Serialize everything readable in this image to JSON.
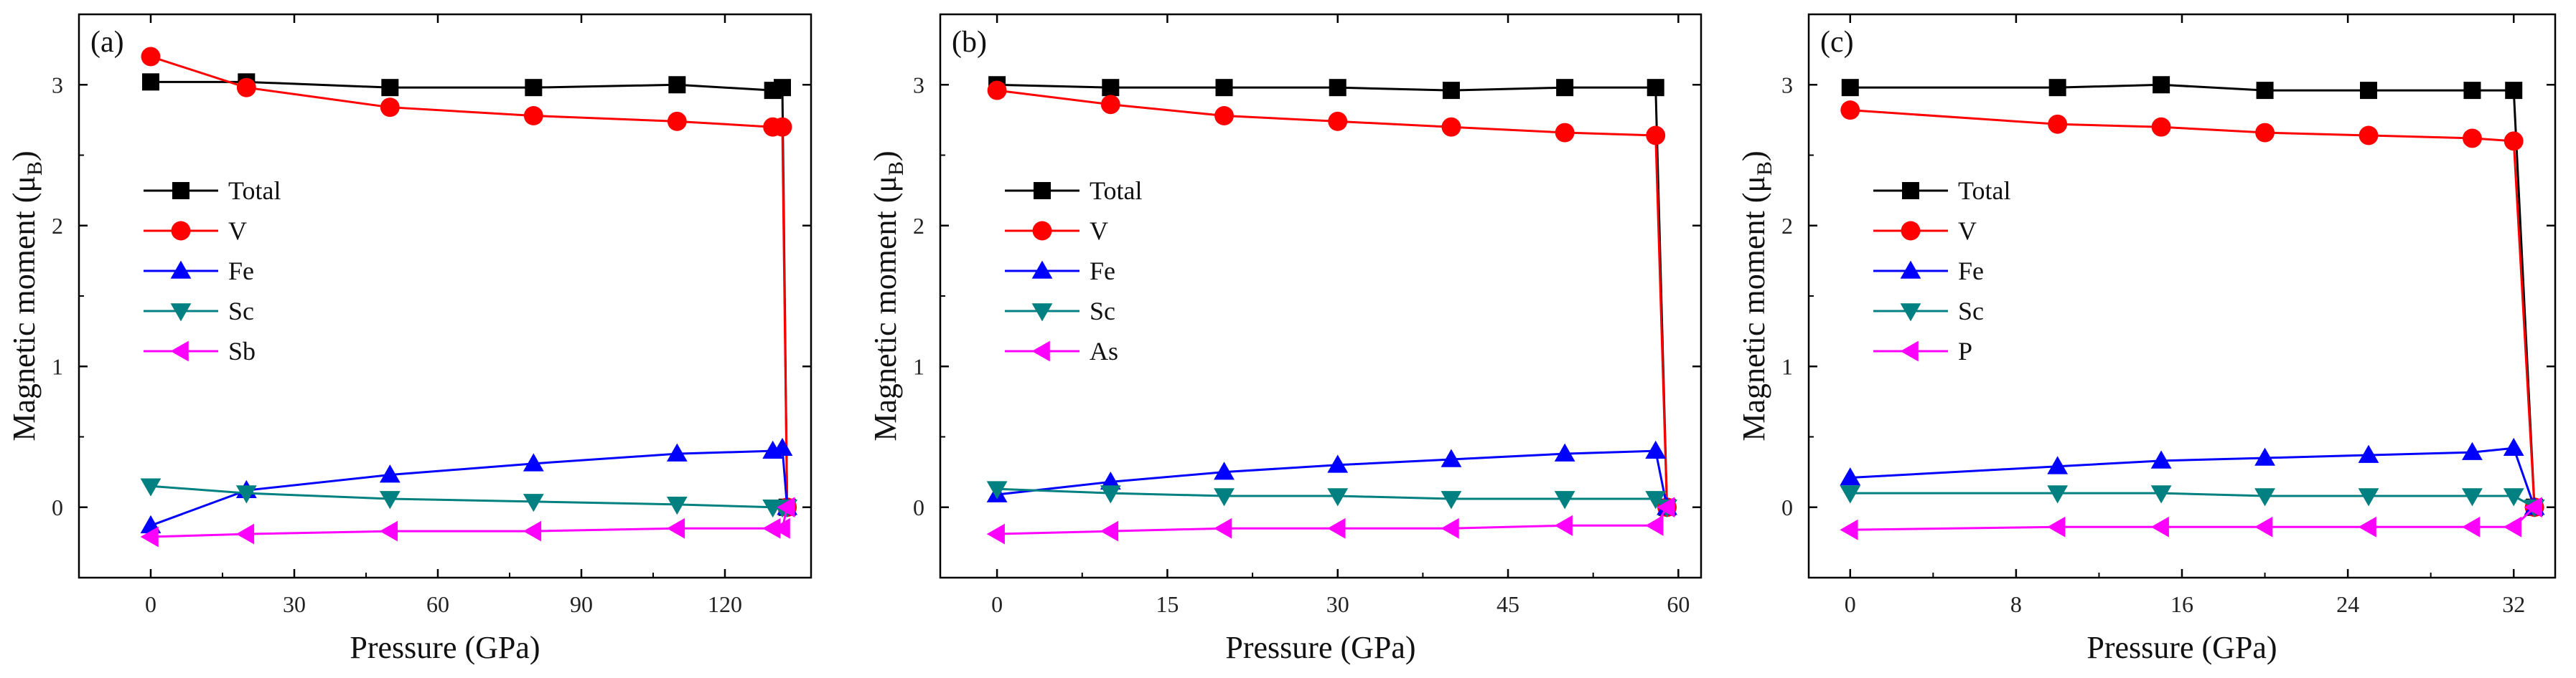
{
  "chart_data": [
    {
      "type": "line",
      "panel_label": "(a)",
      "xlabel": "Pressure (GPa)",
      "ylabel": "Magnetic moment (μ",
      "ylabel_sub": "B",
      "ylabel_close": ")",
      "xlim": [
        -15,
        138
      ],
      "ylim": [
        -0.5,
        3.5
      ],
      "xticks": [
        0,
        30,
        60,
        90,
        120
      ],
      "xtick_labels": [
        "0",
        "30",
        "60",
        "90",
        "120"
      ],
      "yticks": [
        0,
        1,
        2,
        3
      ],
      "ytick_labels": [
        "0",
        "1",
        "2",
        "3"
      ],
      "legend_position": "left",
      "series": [
        {
          "name": "Total",
          "color": "#000000",
          "marker": "square",
          "x": [
            0,
            20,
            50,
            80,
            110,
            130,
            132,
            133
          ],
          "y": [
            3.02,
            3.02,
            2.98,
            2.98,
            3.0,
            2.96,
            2.98,
            0.0
          ]
        },
        {
          "name": "V",
          "color": "#ff0000",
          "marker": "circle",
          "x": [
            0,
            20,
            50,
            80,
            110,
            130,
            132,
            133
          ],
          "y": [
            3.2,
            2.98,
            2.84,
            2.78,
            2.74,
            2.7,
            2.7,
            0.0
          ]
        },
        {
          "name": "Fe",
          "color": "#0000ff",
          "marker": "triangle-up",
          "x": [
            0,
            20,
            50,
            80,
            110,
            130,
            132,
            133
          ],
          "y": [
            -0.13,
            0.12,
            0.23,
            0.31,
            0.38,
            0.4,
            0.42,
            0.0
          ]
        },
        {
          "name": "Sc",
          "color": "#008080",
          "marker": "triangle-down",
          "x": [
            0,
            20,
            50,
            80,
            110,
            130,
            132,
            133
          ],
          "y": [
            0.15,
            0.1,
            0.06,
            0.04,
            0.02,
            0.0,
            0.0,
            0.0
          ]
        },
        {
          "name": "Sb",
          "color": "#ff00ff",
          "marker": "triangle-left",
          "x": [
            0,
            20,
            50,
            80,
            110,
            130,
            132,
            133
          ],
          "y": [
            -0.21,
            -0.19,
            -0.17,
            -0.17,
            -0.15,
            -0.15,
            -0.15,
            0.0
          ]
        }
      ]
    },
    {
      "type": "line",
      "panel_label": "(b)",
      "xlabel": "Pressure (GPa)",
      "ylabel": "Magnetic moment (μ",
      "ylabel_sub": "B",
      "ylabel_close": ")",
      "xlim": [
        -5,
        62
      ],
      "ylim": [
        -0.5,
        3.5
      ],
      "xticks": [
        0,
        15,
        30,
        45,
        60
      ],
      "xtick_labels": [
        "0",
        "15",
        "30",
        "45",
        "60"
      ],
      "yticks": [
        0,
        1,
        2,
        3
      ],
      "ytick_labels": [
        "0",
        "1",
        "2",
        "3"
      ],
      "legend_position": "left",
      "series": [
        {
          "name": "Total",
          "color": "#000000",
          "marker": "square",
          "x": [
            0,
            10,
            20,
            30,
            40,
            50,
            58,
            59
          ],
          "y": [
            3.0,
            2.98,
            2.98,
            2.98,
            2.96,
            2.98,
            2.98,
            0.0
          ]
        },
        {
          "name": "V",
          "color": "#ff0000",
          "marker": "circle",
          "x": [
            0,
            10,
            20,
            30,
            40,
            50,
            58,
            59
          ],
          "y": [
            2.96,
            2.86,
            2.78,
            2.74,
            2.7,
            2.66,
            2.64,
            0.0
          ]
        },
        {
          "name": "Fe",
          "color": "#0000ff",
          "marker": "triangle-up",
          "x": [
            0,
            10,
            20,
            30,
            40,
            50,
            58,
            59
          ],
          "y": [
            0.09,
            0.18,
            0.25,
            0.3,
            0.34,
            0.38,
            0.4,
            0.0
          ]
        },
        {
          "name": "Sc",
          "color": "#008080",
          "marker": "triangle-down",
          "x": [
            0,
            10,
            20,
            30,
            40,
            50,
            58,
            59
          ],
          "y": [
            0.13,
            0.1,
            0.08,
            0.08,
            0.06,
            0.06,
            0.06,
            0.0
          ]
        },
        {
          "name": "As",
          "color": "#ff00ff",
          "marker": "triangle-left",
          "x": [
            0,
            10,
            20,
            30,
            40,
            50,
            58,
            59
          ],
          "y": [
            -0.19,
            -0.17,
            -0.15,
            -0.15,
            -0.15,
            -0.13,
            -0.13,
            0.0
          ]
        }
      ]
    },
    {
      "type": "line",
      "panel_label": "(c)",
      "xlabel": "Pressure (GPa)",
      "ylabel": "Magnetic moment (μ",
      "ylabel_sub": "B",
      "ylabel_close": ")",
      "xlim": [
        -2,
        34
      ],
      "ylim": [
        -0.5,
        3.5
      ],
      "xticks": [
        0,
        8,
        16,
        24,
        32
      ],
      "xtick_labels": [
        "0",
        "8",
        "16",
        "24",
        "32"
      ],
      "yticks": [
        0,
        1,
        2,
        3
      ],
      "ytick_labels": [
        "0",
        "1",
        "2",
        "3"
      ],
      "legend_position": "left",
      "series": [
        {
          "name": "Total",
          "color": "#000000",
          "marker": "square",
          "x": [
            0,
            10,
            15,
            20,
            25,
            30,
            32,
            33
          ],
          "y": [
            2.98,
            2.98,
            3.0,
            2.96,
            2.96,
            2.96,
            2.96,
            0.0
          ]
        },
        {
          "name": "V",
          "color": "#ff0000",
          "marker": "circle",
          "x": [
            0,
            10,
            15,
            20,
            25,
            30,
            32,
            33
          ],
          "y": [
            2.82,
            2.72,
            2.7,
            2.66,
            2.64,
            2.62,
            2.6,
            0.0
          ]
        },
        {
          "name": "Fe",
          "color": "#0000ff",
          "marker": "triangle-up",
          "x": [
            0,
            10,
            15,
            20,
            25,
            30,
            32,
            33
          ],
          "y": [
            0.21,
            0.29,
            0.33,
            0.35,
            0.37,
            0.39,
            0.42,
            0.0
          ]
        },
        {
          "name": "Sc",
          "color": "#008080",
          "marker": "triangle-down",
          "x": [
            0,
            10,
            15,
            20,
            25,
            30,
            32,
            33
          ],
          "y": [
            0.1,
            0.1,
            0.1,
            0.08,
            0.08,
            0.08,
            0.08,
            0.0
          ]
        },
        {
          "name": "P",
          "color": "#ff00ff",
          "marker": "triangle-left",
          "x": [
            0,
            10,
            15,
            20,
            25,
            30,
            32,
            33
          ],
          "y": [
            -0.16,
            -0.14,
            -0.14,
            -0.14,
            -0.14,
            -0.14,
            -0.14,
            0.0
          ]
        }
      ]
    }
  ]
}
